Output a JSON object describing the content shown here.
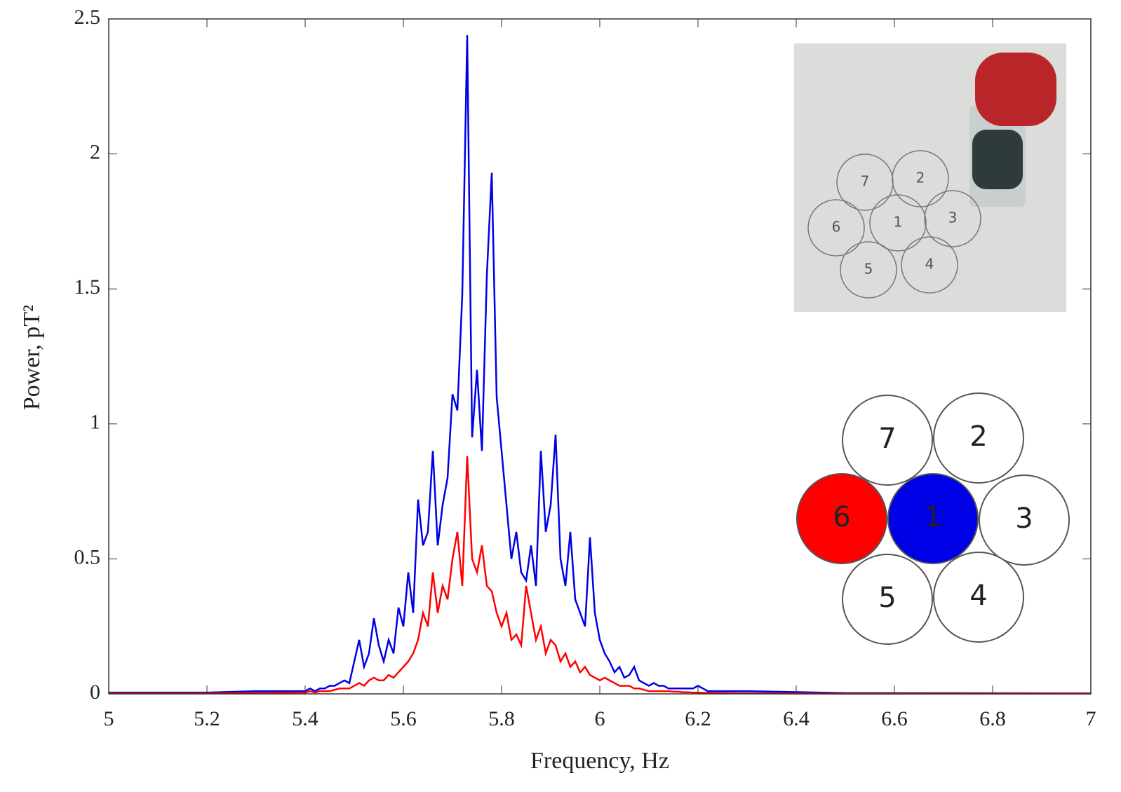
{
  "chart_data": {
    "type": "line",
    "xlabel": "Frequency, Hz",
    "ylabel": "Power, pT²",
    "x": [
      5,
      5.2,
      5.3,
      5.4,
      5.41,
      5.42,
      5.43,
      5.44,
      5.45,
      5.46,
      5.47,
      5.48,
      5.49,
      5.5,
      5.51,
      5.52,
      5.53,
      5.54,
      5.55,
      5.56,
      5.57,
      5.58,
      5.59,
      5.6,
      5.61,
      5.62,
      5.63,
      5.64,
      5.65,
      5.66,
      5.67,
      5.68,
      5.69,
      5.7,
      5.71,
      5.72,
      5.73,
      5.74,
      5.75,
      5.76,
      5.77,
      5.78,
      5.79,
      5.8,
      5.81,
      5.82,
      5.83,
      5.84,
      5.85,
      5.86,
      5.87,
      5.88,
      5.89,
      5.9,
      5.91,
      5.92,
      5.93,
      5.94,
      5.95,
      5.96,
      5.97,
      5.98,
      5.99,
      6,
      6.01,
      6.02,
      6.03,
      6.04,
      6.05,
      6.06,
      6.07,
      6.08,
      6.09,
      6.1,
      6.11,
      6.12,
      6.13,
      6.14,
      6.15,
      6.16,
      6.17,
      6.18,
      6.19,
      6.2,
      6.21,
      6.22,
      6.23,
      6.24,
      6.25,
      6.3,
      6.5,
      7
    ],
    "series": [
      {
        "name": "1",
        "color": "#0000e6",
        "values": [
          0.005,
          0.005,
          0.01,
          0.01,
          0.02,
          0.01,
          0.02,
          0.02,
          0.03,
          0.03,
          0.04,
          0.05,
          0.04,
          0.12,
          0.2,
          0.1,
          0.15,
          0.28,
          0.18,
          0.12,
          0.2,
          0.15,
          0.32,
          0.25,
          0.45,
          0.3,
          0.72,
          0.55,
          0.6,
          0.9,
          0.55,
          0.7,
          0.8,
          1.11,
          1.05,
          1.48,
          2.44,
          0.95,
          1.2,
          0.9,
          1.55,
          1.93,
          1.1,
          0.9,
          0.7,
          0.5,
          0.6,
          0.45,
          0.42,
          0.55,
          0.4,
          0.9,
          0.6,
          0.7,
          0.96,
          0.5,
          0.4,
          0.6,
          0.35,
          0.3,
          0.25,
          0.58,
          0.3,
          0.2,
          0.15,
          0.12,
          0.08,
          0.1,
          0.06,
          0.07,
          0.1,
          0.05,
          0.04,
          0.03,
          0.04,
          0.03,
          0.03,
          0.02,
          0.02,
          0.02,
          0.02,
          0.02,
          0.02,
          0.03,
          0.02,
          0.01,
          0.01,
          0.01,
          0.01,
          0.01,
          0.003,
          0.002
        ]
      },
      {
        "name": "6",
        "color": "#ff0000",
        "values": [
          0.002,
          0.002,
          0.004,
          0.005,
          0.01,
          0.005,
          0.01,
          0.01,
          0.01,
          0.015,
          0.02,
          0.02,
          0.02,
          0.03,
          0.04,
          0.03,
          0.05,
          0.06,
          0.05,
          0.05,
          0.07,
          0.06,
          0.08,
          0.1,
          0.12,
          0.15,
          0.2,
          0.3,
          0.25,
          0.45,
          0.3,
          0.4,
          0.35,
          0.5,
          0.6,
          0.4,
          0.88,
          0.5,
          0.45,
          0.55,
          0.4,
          0.38,
          0.3,
          0.25,
          0.3,
          0.2,
          0.22,
          0.18,
          0.4,
          0.3,
          0.2,
          0.25,
          0.15,
          0.2,
          0.18,
          0.12,
          0.15,
          0.1,
          0.12,
          0.08,
          0.1,
          0.07,
          0.06,
          0.05,
          0.06,
          0.05,
          0.04,
          0.03,
          0.03,
          0.03,
          0.02,
          0.02,
          0.015,
          0.01,
          0.01,
          0.01,
          0.01,
          0.01,
          0.008,
          0.008,
          0.006,
          0.006,
          0.005,
          0.005,
          0.004,
          0.004,
          0.003,
          0.003,
          0.003,
          0.002,
          0.001,
          0.001
        ]
      }
    ],
    "xlim": [
      5,
      7
    ],
    "xticks": [
      5,
      5.2,
      5.4,
      5.6,
      5.8,
      6,
      6.2,
      6.4,
      6.6,
      6.8,
      7
    ],
    "ylim": [
      0,
      2.5
    ],
    "yticks": [
      0,
      0.5,
      1,
      1.5,
      2,
      2.5
    ],
    "photo_labels": [
      "7",
      "2",
      "6",
      "1",
      "3",
      "5",
      "4"
    ],
    "diagram_labels": [
      "7",
      "2",
      "6",
      "1",
      "3",
      "5",
      "4"
    ]
  }
}
